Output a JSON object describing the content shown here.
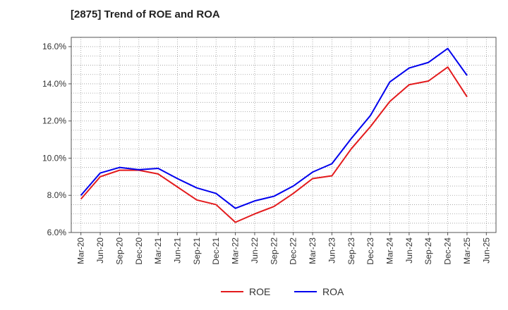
{
  "chart_data": {
    "type": "line",
    "title": "[2875]  Trend of ROE and ROA",
    "xlabel": "",
    "ylabel": "",
    "x": [
      "Mar-20",
      "Jun-20",
      "Sep-20",
      "Dec-20",
      "Mar-21",
      "Jun-21",
      "Sep-21",
      "Dec-21",
      "Mar-22",
      "Jun-22",
      "Sep-22",
      "Dec-22",
      "Mar-23",
      "Jun-23",
      "Sep-23",
      "Dec-23",
      "Mar-24",
      "Jun-24",
      "Sep-24",
      "Dec-24",
      "Mar-25"
    ],
    "x_ticks": [
      "Mar-20",
      "Jun-20",
      "Sep-20",
      "Dec-20",
      "Mar-21",
      "Jun-21",
      "Sep-21",
      "Dec-21",
      "Mar-22",
      "Jun-22",
      "Sep-22",
      "Dec-22",
      "Mar-23",
      "Jun-23",
      "Sep-23",
      "Dec-23",
      "Mar-24",
      "Jun-24",
      "Sep-24",
      "Dec-24",
      "Mar-25",
      "Jun-25"
    ],
    "y_ticks": [
      "6.0%",
      "8.0%",
      "10.0%",
      "12.0%",
      "14.0%",
      "16.0%"
    ],
    "ylim": [
      6.0,
      16.5
    ],
    "series": [
      {
        "name": "ROE",
        "color": "#e31a1c",
        "values": [
          7.8,
          9.0,
          9.35,
          9.35,
          9.15,
          8.45,
          7.75,
          7.5,
          6.55,
          7.0,
          7.4,
          8.1,
          8.9,
          9.05,
          10.5,
          11.7,
          13.05,
          13.95,
          14.15,
          14.9,
          13.3
        ]
      },
      {
        "name": "ROA",
        "color": "#0000ee",
        "values": [
          8.0,
          9.2,
          9.5,
          9.38,
          9.45,
          8.9,
          8.4,
          8.1,
          7.3,
          7.7,
          7.95,
          8.5,
          9.25,
          9.7,
          11.05,
          12.3,
          14.1,
          14.85,
          15.15,
          15.9,
          14.45
        ]
      }
    ],
    "grid": true,
    "legend": "bottom-center"
  }
}
